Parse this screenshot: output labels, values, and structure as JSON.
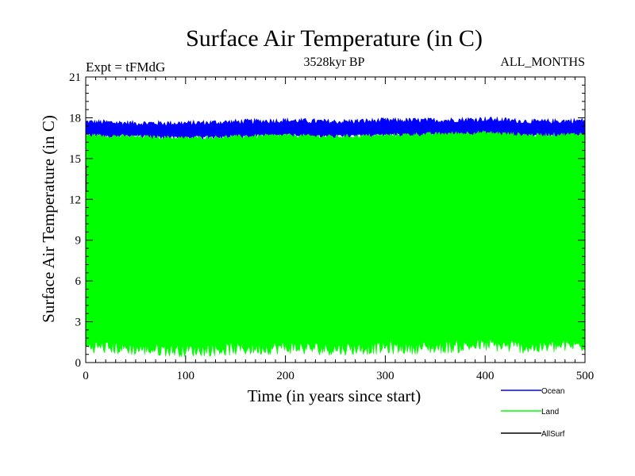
{
  "chart_data": {
    "type": "line",
    "title": "Surface Air Temperature (in C)",
    "subtitle": "3528kyr BP",
    "experiment": "Expt = tFMdG",
    "months": "ALL_MONTHS",
    "xlabel": "Time (in years since start)",
    "ylabel": "Surface Air Temperature (in C)",
    "xlim": [
      0,
      500
    ],
    "ylim": [
      0,
      21
    ],
    "xticks": [
      0,
      100,
      200,
      300,
      400,
      500
    ],
    "yticks": [
      0,
      3,
      6,
      9,
      12,
      15,
      18,
      21
    ],
    "legend_position": "bottom-right",
    "series": [
      {
        "name": "Ocean",
        "color": "#0000ff",
        "band_low": [
          16.7,
          16.6,
          16.5,
          16.6,
          16.7,
          16.6,
          16.7,
          16.7,
          16.7,
          16.6,
          16.7
        ],
        "band_high": [
          17.7,
          17.6,
          17.6,
          17.7,
          17.8,
          17.7,
          17.8,
          17.8,
          17.9,
          17.7,
          17.8
        ]
      },
      {
        "name": "Land",
        "color": "#00ff00",
        "band_low": [
          1.2,
          1.0,
          0.9,
          1.0,
          1.1,
          1.0,
          1.1,
          1.1,
          1.3,
          1.1,
          1.3
        ],
        "band_high": [
          16.7,
          16.6,
          16.5,
          16.6,
          16.7,
          16.6,
          16.7,
          16.8,
          16.9,
          16.7,
          16.8
        ]
      },
      {
        "name": "AllSurf",
        "color": "#000000",
        "start_value": 14.5
      }
    ]
  }
}
